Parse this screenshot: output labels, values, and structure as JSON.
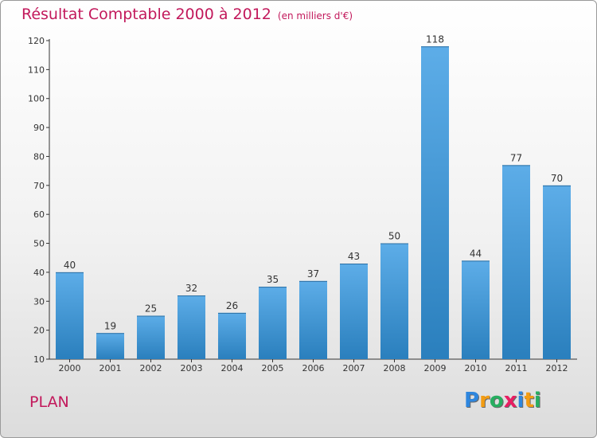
{
  "header": {
    "title": "Résultat Comptable 2000 à 2012",
    "unit": "(en milliers d'€)"
  },
  "footer": {
    "commune": "PLAN",
    "brand": [
      "P",
      "r",
      "o",
      "x",
      "i",
      "t",
      "i"
    ]
  },
  "colors": {
    "accent": "#c2185b",
    "bar_top": "#5dade8",
    "bar_bottom": "#2a7fbd",
    "axis": "#333333"
  },
  "chart_data": {
    "type": "bar",
    "title": "Résultat Comptable 2000 à 2012",
    "subtitle": "(en milliers d'€)",
    "categories": [
      "2000",
      "2001",
      "2002",
      "2003",
      "2004",
      "2005",
      "2006",
      "2007",
      "2008",
      "2009",
      "2010",
      "2011",
      "2012"
    ],
    "values": [
      40,
      19,
      25,
      32,
      26,
      35,
      37,
      43,
      50,
      118,
      44,
      77,
      70
    ],
    "xlabel": "",
    "ylabel": "",
    "ylim": [
      10,
      120
    ],
    "yticks": [
      10,
      20,
      30,
      40,
      50,
      60,
      70,
      80,
      90,
      100,
      110,
      120
    ],
    "grid": false,
    "legend": "none"
  }
}
